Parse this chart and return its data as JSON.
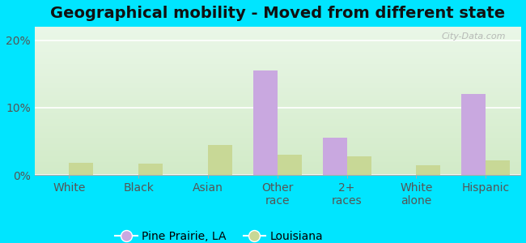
{
  "title": "Geographical mobility - Moved from different state",
  "categories": [
    "White",
    "Black",
    "Asian",
    "Other\nrace",
    "2+\nraces",
    "White\nalone",
    "Hispanic"
  ],
  "pine_prairie": [
    0.0,
    0.0,
    0.0,
    15.5,
    5.5,
    0.0,
    12.0
  ],
  "louisiana": [
    1.8,
    1.7,
    4.5,
    3.0,
    2.8,
    1.5,
    2.2
  ],
  "pine_prairie_color": "#c9a8e0",
  "louisiana_color": "#c8d896",
  "bar_width": 0.35,
  "ylim": [
    0,
    22
  ],
  "yticks": [
    0,
    10,
    20
  ],
  "ytick_labels": [
    "0%",
    "10%",
    "20%"
  ],
  "background_outer": "#00e5ff",
  "legend_labels": [
    "Pine Prairie, LA",
    "Louisiana"
  ],
  "title_fontsize": 14,
  "axis_label_fontsize": 10,
  "watermark": "City-Data.com",
  "grad_top": "#eaf7e8",
  "grad_bottom": "#d8efcf"
}
